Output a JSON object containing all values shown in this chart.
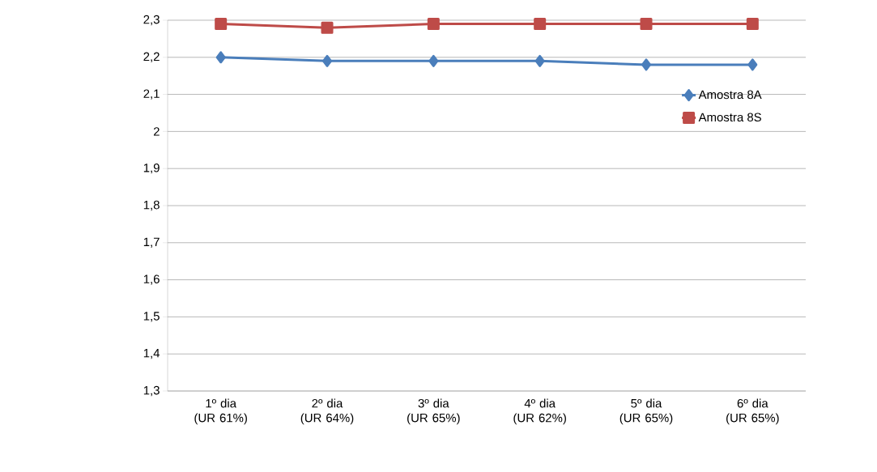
{
  "chart_data": {
    "type": "line",
    "categories": [
      "1º dia (UR 61%)",
      "2º dia (UR 64%)",
      "3º dia (UR 65%)",
      "4º dia (UR 62%)",
      "5º dia (UR 65%)",
      "6º dia (UR 65%)"
    ],
    "series": [
      {
        "name": "Amostra 8A",
        "color": "#4a7ebb",
        "marker": "diamond",
        "values": [
          2.2,
          2.19,
          2.19,
          2.19,
          2.18,
          2.18
        ]
      },
      {
        "name": "Amostra 8S",
        "color": "#be4b48",
        "marker": "square",
        "values": [
          2.29,
          2.28,
          2.29,
          2.29,
          2.29,
          2.29
        ]
      }
    ],
    "ylim": [
      1.3,
      2.3
    ],
    "yticks": [
      {
        "value": 1.3,
        "label": "1,3"
      },
      {
        "value": 1.4,
        "label": "1,4"
      },
      {
        "value": 1.5,
        "label": "1,5"
      },
      {
        "value": 1.6,
        "label": "1,6"
      },
      {
        "value": 1.7,
        "label": "1,7"
      },
      {
        "value": 1.8,
        "label": "1,8"
      },
      {
        "value": 1.9,
        "label": "1,9"
      },
      {
        "value": 2,
        "label": "2"
      },
      {
        "value": 2.1,
        "label": "2,1"
      },
      {
        "value": 2.2,
        "label": "2,2"
      },
      {
        "value": 2.3,
        "label": "2,3"
      }
    ],
    "grid": "y",
    "legend": "right",
    "line_style": "solid"
  }
}
